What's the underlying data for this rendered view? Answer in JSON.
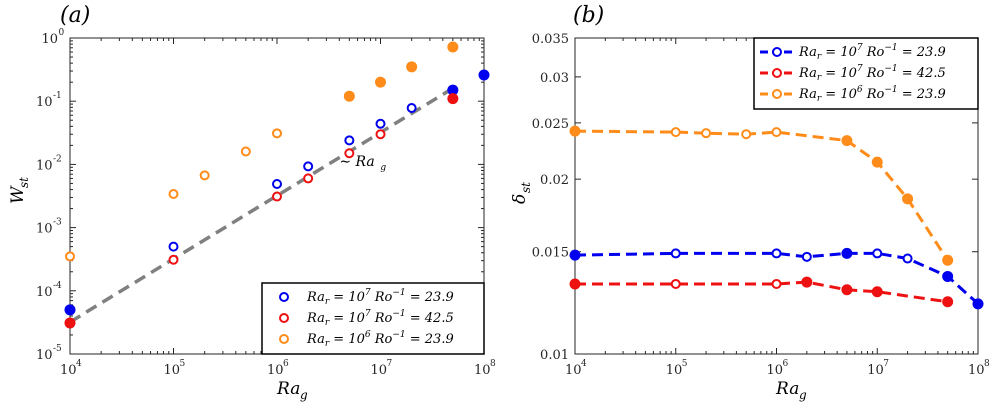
{
  "chart_data": [
    {
      "panel": "(a)",
      "type": "scatter",
      "xscale": "log",
      "yscale": "log",
      "xlim": [
        10000,
        100000000
      ],
      "ylim": [
        1e-05,
        1
      ],
      "xlabel": "Ra",
      "xlabel_sub": "g",
      "ylabel": "W",
      "ylabel_sub": "st",
      "x_ticks": [
        {
          "value": 10000,
          "base": "10",
          "exp": "4"
        },
        {
          "value": 100000,
          "base": "10",
          "exp": "5"
        },
        {
          "value": 1000000,
          "base": "10",
          "exp": "6"
        },
        {
          "value": 10000000,
          "base": "10",
          "exp": "7"
        },
        {
          "value": 100000000,
          "base": "10",
          "exp": "8"
        }
      ],
      "y_ticks": [
        {
          "value": 1e-05,
          "base": "10",
          "exp": "-5"
        },
        {
          "value": 0.0001,
          "base": "10",
          "exp": "-4"
        },
        {
          "value": 0.001,
          "base": "10",
          "exp": "-3"
        },
        {
          "value": 0.01,
          "base": "10",
          "exp": "-2"
        },
        {
          "value": 0.1,
          "base": "10",
          "exp": "-1"
        },
        {
          "value": 1,
          "base": "10",
          "exp": "0"
        }
      ],
      "series": [
        {
          "name": "Ra_r = 10^7 Ro^-1 = 23.9",
          "color": "#0000ee",
          "x": [
            10000,
            100000,
            1000000,
            2000000,
            5000000,
            10000000,
            20000000,
            50000000,
            100000000
          ],
          "y": [
            5e-05,
            0.0005,
            0.0049,
            0.0093,
            0.024,
            0.044,
            0.078,
            0.15,
            0.26
          ],
          "filled": [
            true,
            false,
            false,
            false,
            false,
            false,
            false,
            true,
            true
          ]
        },
        {
          "name": "Ra_r = 10^7 Ro^-1 = 42.5",
          "color": "#ee1111",
          "x": [
            10000,
            100000,
            1000000,
            2000000,
            5000000,
            10000000,
            50000000
          ],
          "y": [
            3.1e-05,
            0.00031,
            0.0031,
            0.006,
            0.015,
            0.03,
            0.11
          ],
          "filled": [
            true,
            false,
            false,
            false,
            false,
            false,
            true
          ]
        },
        {
          "name": "Ra_r = 10^6 Ro^-1 = 23.9",
          "color": "#ff8c1a",
          "x": [
            10000,
            100000,
            200000,
            500000,
            1000000,
            5000000,
            10000000,
            20000000,
            50000000
          ],
          "y": [
            0.00035,
            0.0034,
            0.0067,
            0.016,
            0.031,
            0.12,
            0.2,
            0.35,
            0.72
          ],
          "filled": [
            false,
            false,
            false,
            false,
            false,
            true,
            true,
            true,
            true
          ]
        }
      ],
      "fit_line": {
        "x": [
          10000,
          50000000
        ],
        "y": [
          3.2e-05,
          0.16
        ],
        "color": "#808080",
        "label": "Ra",
        "label_sub": "g",
        "label_prefix": "∼"
      },
      "legend": {
        "placement": "bottom-right",
        "entries": [
          {
            "ra": "Ra",
            "ra_sub": "r",
            "eq": " = 10",
            "exp": "7",
            "ro": " Ro",
            "ro_exp": "−1",
            "val": " = 23.9"
          },
          {
            "ra": "Ra",
            "ra_sub": "r",
            "eq": " = 10",
            "exp": "7",
            "ro": " Ro",
            "ro_exp": "−1",
            "val": " = 42.5"
          },
          {
            "ra": "Ra",
            "ra_sub": "r",
            "eq": " = 10",
            "exp": "6",
            "ro": " Ro",
            "ro_exp": "−1",
            "val": " = 23.9"
          }
        ]
      }
    },
    {
      "panel": "(b)",
      "type": "line",
      "xscale": "log",
      "yscale": "log",
      "xlim": [
        10000,
        100000000
      ],
      "ylim": [
        0.01,
        0.035
      ],
      "xlabel": "Ra",
      "xlabel_sub": "g",
      "ylabel": "δ",
      "ylabel_sub": "st",
      "x_ticks": [
        {
          "value": 10000,
          "base": "10",
          "exp": "4"
        },
        {
          "value": 100000,
          "base": "10",
          "exp": "5"
        },
        {
          "value": 1000000,
          "base": "10",
          "exp": "6"
        },
        {
          "value": 10000000,
          "base": "10",
          "exp": "7"
        },
        {
          "value": 100000000,
          "base": "10",
          "exp": "8"
        }
      ],
      "y_ticks": [
        {
          "value": 0.01,
          "label": "0.01"
        },
        {
          "value": 0.015,
          "label": "0.015"
        },
        {
          "value": 0.02,
          "label": "0.02"
        },
        {
          "value": 0.025,
          "label": "0.025"
        },
        {
          "value": 0.03,
          "label": "0.03"
        },
        {
          "value": 0.035,
          "label": "0.035"
        }
      ],
      "series": [
        {
          "name": "Ra_r = 10^7 Ro^-1 = 23.9",
          "color": "#0000ee",
          "x": [
            10000,
            100000,
            1000000,
            2000000,
            5000000,
            10000000,
            20000000,
            50000000,
            100000000
          ],
          "y": [
            0.0148,
            0.0149,
            0.0149,
            0.0147,
            0.0149,
            0.0149,
            0.0146,
            0.0136,
            0.0122
          ],
          "filled": [
            true,
            false,
            false,
            false,
            true,
            false,
            false,
            true,
            true
          ]
        },
        {
          "name": "Ra_r = 10^7 Ro^-1 = 42.5",
          "color": "#ee1111",
          "x": [
            10000,
            100000,
            1000000,
            2000000,
            5000000,
            10000000,
            50000000
          ],
          "y": [
            0.0132,
            0.0132,
            0.0132,
            0.0133,
            0.0129,
            0.0128,
            0.0123
          ],
          "filled": [
            true,
            false,
            false,
            true,
            true,
            true,
            true
          ]
        },
        {
          "name": "Ra_r = 10^6 Ro^-1 = 23.9",
          "color": "#ff8c1a",
          "x": [
            10000,
            100000,
            200000,
            500000,
            1000000,
            5000000,
            10000000,
            20000000,
            50000000
          ],
          "y": [
            0.0242,
            0.0241,
            0.024,
            0.0239,
            0.0241,
            0.0233,
            0.0214,
            0.0185,
            0.0145
          ],
          "filled": [
            true,
            false,
            false,
            false,
            false,
            true,
            true,
            true,
            true
          ]
        }
      ],
      "legend": {
        "placement": "top-right",
        "entries": [
          {
            "ra": "Ra",
            "ra_sub": "r",
            "eq": " = 10",
            "exp": "7",
            "ro": " Ro",
            "ro_exp": "−1",
            "val": " = 23.9"
          },
          {
            "ra": "Ra",
            "ra_sub": "r",
            "eq": " = 10",
            "exp": "7",
            "ro": " Ro",
            "ro_exp": "−1",
            "val": " = 42.5"
          },
          {
            "ra": "Ra",
            "ra_sub": "r",
            "eq": " = 10",
            "exp": "6",
            "ro": " Ro",
            "ro_exp": "−1",
            "val": " = 23.9"
          }
        ]
      }
    }
  ]
}
